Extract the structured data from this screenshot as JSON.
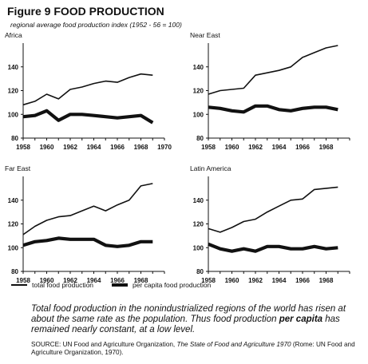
{
  "figure": {
    "title": "Figure 9 FOOD PRODUCTION",
    "subtitle": "regional average food production index (1952 - 56 = 100)"
  },
  "legend": {
    "total": "total food production",
    "per_capita": "per capita food production"
  },
  "caption": {
    "part1": "Total food production in the nonindustrialized regions of the world has risen at about the same rate as the population. Thus food production ",
    "bold": "per capita",
    "part2": " has remained nearly constant, at a low level."
  },
  "source": {
    "prefix": "SOURCE: UN Food and Agriculture Organization, ",
    "title": "The State of Food and Agriculture 1970",
    "suffix": " (Rome: UN Food and Agriculture Organization, 1970)."
  },
  "chart_data": [
    {
      "type": "line",
      "title": "Africa",
      "ylim": [
        80,
        160
      ],
      "yticks": [
        80,
        100,
        120,
        140
      ],
      "xlim": [
        1958,
        1970
      ],
      "xticks": [
        1958,
        1960,
        1962,
        1964,
        1966,
        1968,
        1970
      ],
      "series": [
        {
          "name": "total food production",
          "x": [
            1958,
            1959,
            1960,
            1961,
            1962,
            1963,
            1964,
            1965,
            1966,
            1967,
            1968,
            1969
          ],
          "y": [
            108,
            111,
            117,
            113,
            121,
            123,
            126,
            128,
            127,
            131,
            134,
            133
          ]
        },
        {
          "name": "per capita food production",
          "x": [
            1958,
            1959,
            1960,
            1961,
            1962,
            1963,
            1964,
            1965,
            1966,
            1967,
            1968,
            1969
          ],
          "y": [
            98,
            99,
            103,
            95,
            100,
            100,
            99,
            98,
            97,
            98,
            99,
            93
          ]
        }
      ]
    },
    {
      "type": "line",
      "title": "Near East",
      "ylim": [
        80,
        160
      ],
      "yticks": [
        80,
        100,
        120,
        140
      ],
      "xlim": [
        1958,
        1970
      ],
      "xticks": [
        1958,
        1960,
        1962,
        1964,
        1966,
        1968
      ],
      "series": [
        {
          "name": "total food production",
          "x": [
            1958,
            1959,
            1960,
            1961,
            1962,
            1963,
            1964,
            1965,
            1966,
            1967,
            1968,
            1969
          ],
          "y": [
            117,
            120,
            121,
            122,
            133,
            135,
            137,
            140,
            148,
            152,
            156,
            158
          ]
        },
        {
          "name": "per capita food production",
          "x": [
            1958,
            1959,
            1960,
            1961,
            1962,
            1963,
            1964,
            1965,
            1966,
            1967,
            1968,
            1969
          ],
          "y": [
            106,
            105,
            103,
            102,
            107,
            107,
            104,
            103,
            105,
            106,
            106,
            104
          ]
        }
      ]
    },
    {
      "type": "line",
      "title": "Far East",
      "ylim": [
        80,
        160
      ],
      "yticks": [
        80,
        100,
        120,
        140
      ],
      "xlim": [
        1958,
        1970
      ],
      "xticks": [
        1958,
        1960,
        1962,
        1964,
        1966,
        1968
      ],
      "series": [
        {
          "name": "total food production",
          "x": [
            1958,
            1959,
            1960,
            1961,
            1962,
            1963,
            1964,
            1965,
            1966,
            1967,
            1968,
            1969
          ],
          "y": [
            111,
            118,
            123,
            126,
            127,
            131,
            135,
            131,
            136,
            140,
            152,
            154
          ]
        },
        {
          "name": "per capita food production",
          "x": [
            1958,
            1959,
            1960,
            1961,
            1962,
            1963,
            1964,
            1965,
            1966,
            1967,
            1968,
            1969
          ],
          "y": [
            102,
            105,
            106,
            108,
            107,
            107,
            107,
            102,
            101,
            102,
            105,
            105
          ]
        }
      ]
    },
    {
      "type": "line",
      "title": "Latin America",
      "ylim": [
        80,
        160
      ],
      "yticks": [
        80,
        100,
        120,
        140
      ],
      "xlim": [
        1958,
        1970
      ],
      "xticks": [
        1958,
        1960,
        1962,
        1964,
        1966,
        1968
      ],
      "series": [
        {
          "name": "total food production",
          "x": [
            1958,
            1959,
            1960,
            1961,
            1962,
            1963,
            1964,
            1965,
            1966,
            1967,
            1968,
            1969
          ],
          "y": [
            116,
            113,
            117,
            122,
            124,
            130,
            135,
            140,
            141,
            149,
            150,
            151
          ]
        },
        {
          "name": "per capita food production",
          "x": [
            1958,
            1959,
            1960,
            1961,
            1962,
            1963,
            1964,
            1965,
            1966,
            1967,
            1968,
            1969
          ],
          "y": [
            103,
            99,
            97,
            99,
            97,
            101,
            101,
            99,
            99,
            101,
            99,
            100
          ]
        }
      ]
    }
  ]
}
